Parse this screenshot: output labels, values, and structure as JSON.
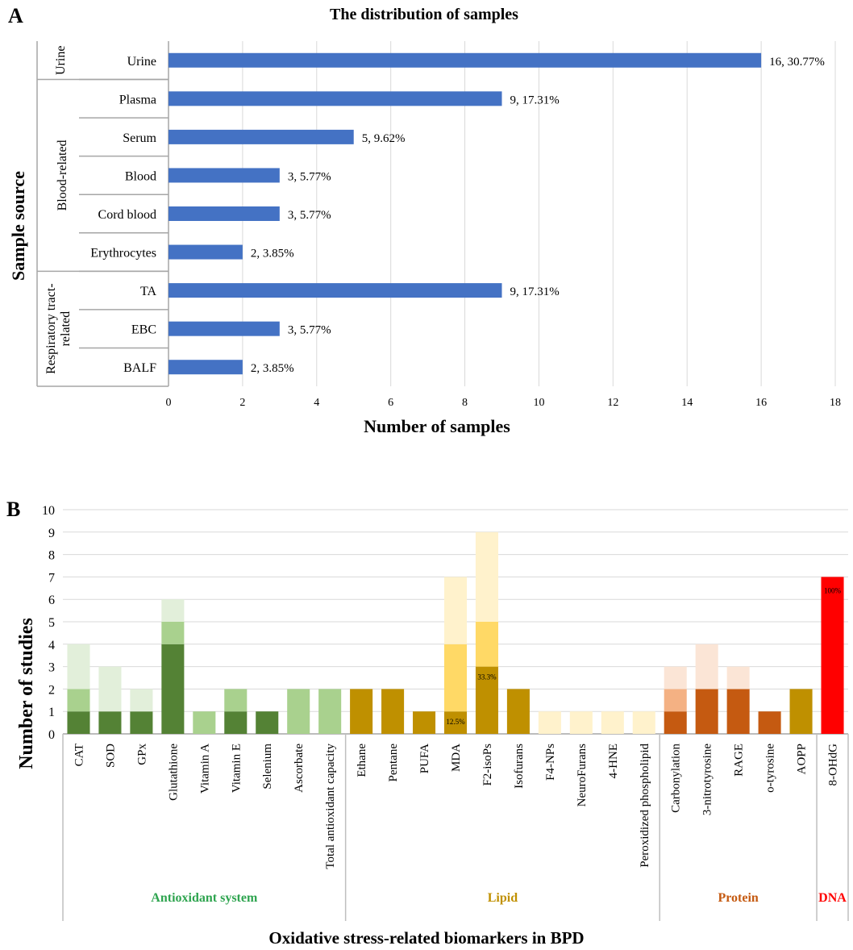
{
  "panel_a_label": "A",
  "panel_b_label": "B",
  "chart_data": [
    {
      "type": "bar",
      "orientation": "horizontal",
      "title": "The distribution of samples",
      "xlabel": "Number of samples",
      "ylabel": "Sample source",
      "xlim": [
        0,
        18
      ],
      "xticks": [
        "0",
        "2",
        "4",
        "6",
        "8",
        "10",
        "12",
        "14",
        "16",
        "18"
      ],
      "bar_color": "#4472C4",
      "groups": [
        {
          "name": "Urine",
          "items": [
            {
              "category": "Urine",
              "value": 16,
              "label": "16, 30.77%"
            }
          ]
        },
        {
          "name": "Blood-related",
          "items": [
            {
              "category": "Plasma",
              "value": 9,
              "label": "9, 17.31%"
            },
            {
              "category": "Serum",
              "value": 5,
              "label": "5, 9.62%"
            },
            {
              "category": "Blood",
              "value": 3,
              "label": "3, 5.77%"
            },
            {
              "category": "Cord blood",
              "value": 3,
              "label": "3, 5.77%"
            },
            {
              "category": "Erythrocytes",
              "value": 2,
              "label": "2, 3.85%"
            }
          ]
        },
        {
          "name": "Respiratory tract-related",
          "items": [
            {
              "category": "TA",
              "value": 9,
              "label": "9, 17.31%"
            },
            {
              "category": "EBC",
              "value": 3,
              "label": "3, 5.77%"
            },
            {
              "category": "BALF",
              "value": 2,
              "label": "2, 3.85%"
            }
          ]
        }
      ]
    },
    {
      "type": "stacked_bar",
      "xlabel": "Oxidative stress-related biomarkers in BPD",
      "ylabel": "Number of studies",
      "ylim": [
        0,
        10
      ],
      "yticks": [
        "0",
        "1",
        "2",
        "3",
        "4",
        "5",
        "6",
        "7",
        "8",
        "9",
        "10"
      ],
      "groups": [
        {
          "name": "Antioxidant system",
          "color": "#2EA44F",
          "shades": [
            "#548235",
            "#A9D18E",
            "#E2EFDA"
          ],
          "bars": [
            {
              "category": "CAT",
              "segments": [
                1,
                1,
                2
              ]
            },
            {
              "category": "SOD",
              "segments": [
                1,
                0,
                2
              ]
            },
            {
              "category": "GPx",
              "segments": [
                1,
                0,
                1
              ]
            },
            {
              "category": "Glutathione",
              "segments": [
                4,
                1,
                1
              ]
            },
            {
              "category": "Vitamin A",
              "segments": [
                0,
                1,
                0
              ]
            },
            {
              "category": "Vitamin E",
              "segments": [
                1,
                1,
                0
              ]
            },
            {
              "category": "Selenium",
              "segments": [
                1,
                0,
                0
              ]
            },
            {
              "category": "Ascorbate",
              "segments": [
                0,
                2,
                0
              ]
            },
            {
              "category": "Total antioxidant capacity",
              "segments": [
                0,
                2,
                0
              ]
            }
          ]
        },
        {
          "name": "Lipid",
          "color": "#C09000",
          "shades": [
            "#BF9000",
            "#FFD966",
            "#FFF2CC"
          ],
          "bars": [
            {
              "category": "Ethane",
              "segments": [
                2,
                0,
                0
              ]
            },
            {
              "category": "Pentane",
              "segments": [
                2,
                0,
                0
              ]
            },
            {
              "category": "PUFA",
              "segments": [
                1,
                0,
                0
              ]
            },
            {
              "category": "MDA",
              "segments": [
                1,
                3,
                3
              ],
              "annotation": "12.5%"
            },
            {
              "category": "F2-isoPs",
              "segments": [
                3,
                2,
                4
              ],
              "annotation": "33.3%"
            },
            {
              "category": "Isofurans",
              "segments": [
                2,
                0,
                0
              ]
            },
            {
              "category": "F4-NPs",
              "segments": [
                0,
                0,
                1
              ]
            },
            {
              "category": "NeuroFurans",
              "segments": [
                0,
                0,
                1
              ]
            },
            {
              "category": "4-HNE",
              "segments": [
                0,
                0,
                1
              ]
            },
            {
              "category": "Peroxidized phospholipid",
              "segments": [
                0,
                0,
                1
              ]
            }
          ]
        },
        {
          "name": "Protein",
          "color": "#C55A11",
          "shades": [
            "#C55A11",
            "#F4B183",
            "#FBE5D6"
          ],
          "bars": [
            {
              "category": "Carbonylation",
              "segments": [
                1,
                1,
                1
              ]
            },
            {
              "category": "3-nitrotyrosine",
              "segments": [
                2,
                0,
                2
              ]
            },
            {
              "category": "RAGE",
              "segments": [
                2,
                0,
                1
              ]
            },
            {
              "category": "o-tyrosine",
              "segments": [
                1,
                0,
                0
              ]
            },
            {
              "category": "AOPP",
              "segments": [
                0,
                0,
                0
              ],
              "override_value": 2,
              "override_color": "#BF9000"
            }
          ]
        },
        {
          "name": "DNA",
          "color": "#FF0000",
          "shades": [
            "#FF0000",
            "#FF0000",
            "#FF0000"
          ],
          "bars": [
            {
              "category": "8-OHdG",
              "segments": [
                7,
                0,
                0
              ],
              "annotation": "100%"
            }
          ]
        }
      ]
    }
  ]
}
